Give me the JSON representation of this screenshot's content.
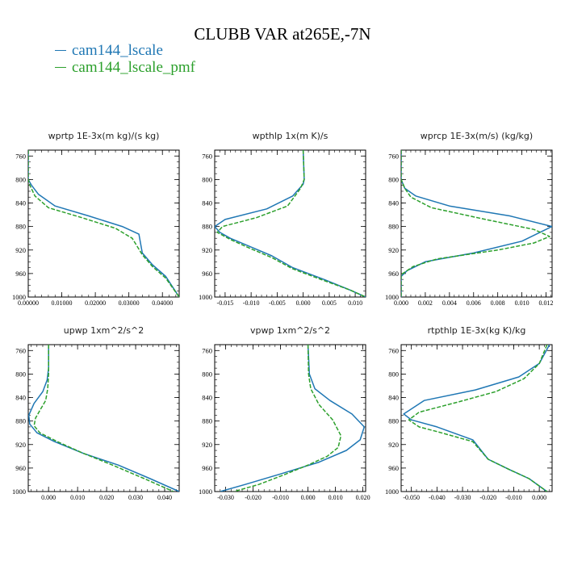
{
  "figure": {
    "title": "CLUBB VAR at265E,-7N"
  },
  "legend": [
    {
      "name": "cam144_lscale",
      "color": "#1f77b4",
      "style": "solid"
    },
    {
      "name": "cam144_lscale_pmf",
      "color": "#2ca02c",
      "style": "dashed"
    }
  ],
  "chart_data": [
    {
      "type": "line",
      "title": "wprtp  1E-3x(m kg)/(s kg)",
      "xlim": [
        0,
        0.045
      ],
      "xticks": [
        0,
        0.01,
        0.02,
        0.03,
        0.04
      ],
      "xtick_labels": [
        "0.00000",
        "0.01000",
        "0.02000",
        "0.03000",
        "0.04000"
      ],
      "ylim": [
        1000,
        750
      ],
      "yticks": [
        760,
        800,
        840,
        880,
        920,
        960,
        1000
      ],
      "series": [
        {
          "name": "cam144_lscale",
          "x": [
            0,
            0,
            0,
            0.001,
            0.003,
            0.008,
            0.018,
            0.028,
            0.033,
            0.034,
            0.037,
            0.041,
            0.045
          ],
          "y": [
            750,
            780,
            800,
            810,
            825,
            845,
            862,
            880,
            893,
            925,
            945,
            965,
            1000
          ]
        },
        {
          "name": "cam144_lscale_pmf",
          "x": [
            0,
            0,
            0,
            0.0005,
            0.002,
            0.006,
            0.016,
            0.026,
            0.031,
            0.034,
            0.037,
            0.041,
            0.045
          ],
          "y": [
            750,
            780,
            800,
            810,
            828,
            848,
            865,
            883,
            900,
            928,
            948,
            968,
            1000
          ]
        }
      ]
    },
    {
      "type": "line",
      "title": "wpthlp  1x(m K)/s",
      "xlim": [
        -0.017,
        0.012
      ],
      "xticks": [
        -0.015,
        -0.01,
        -0.005,
        0,
        0.005,
        0.01
      ],
      "xtick_labels": [
        "-0.015",
        "-0.010",
        "-0.005",
        "0.000",
        "0.005",
        "0.010"
      ],
      "ylim": [
        1000,
        750
      ],
      "yticks": [
        760,
        800,
        840,
        880,
        920,
        960,
        1000
      ],
      "series": [
        {
          "name": "cam144_lscale",
          "x": [
            0,
            0.0002,
            0,
            -0.002,
            -0.007,
            -0.015,
            -0.017,
            -0.016,
            -0.014,
            -0.01,
            -0.006,
            -0.002,
            0.004,
            0.009,
            0.012
          ],
          "y": [
            750,
            800,
            808,
            828,
            850,
            868,
            880,
            890,
            900,
            915,
            930,
            950,
            970,
            988,
            1000
          ]
        },
        {
          "name": "cam144_lscale_pmf",
          "x": [
            0,
            0.0002,
            -0.0005,
            -0.003,
            -0.009,
            -0.0155,
            -0.0165,
            -0.014,
            -0.01,
            -0.006,
            -0.002,
            0.004,
            0.009,
            0.012
          ],
          "y": [
            750,
            800,
            815,
            845,
            865,
            880,
            890,
            902,
            918,
            933,
            952,
            972,
            988,
            1000
          ]
        }
      ]
    },
    {
      "type": "line",
      "title": "wprcp  1E-3x(m/s) (kg/kg)",
      "xlim": [
        0,
        0.0125
      ],
      "xticks": [
        0,
        0.002,
        0.004,
        0.006,
        0.008,
        0.01,
        0.012
      ],
      "xtick_labels": [
        "0.000",
        "0.002",
        "0.004",
        "0.006",
        "0.008",
        "0.010",
        "0.012"
      ],
      "ylim": [
        1000,
        750
      ],
      "yticks": [
        760,
        800,
        840,
        880,
        920,
        960,
        1000
      ],
      "series": [
        {
          "name": "cam144_lscale",
          "x": [
            0,
            0,
            0.0003,
            0.0012,
            0.004,
            0.009,
            0.0125,
            0.01,
            0.006,
            0.002,
            0.0005,
            0,
            0
          ],
          "y": [
            750,
            800,
            815,
            828,
            845,
            862,
            880,
            905,
            925,
            940,
            955,
            965,
            1000
          ]
        },
        {
          "name": "cam144_lscale_pmf",
          "x": [
            0,
            0,
            0.0003,
            0.0008,
            0.0025,
            0.007,
            0.011,
            0.0123,
            0.011,
            0.008,
            0.003,
            0.001,
            0,
            0
          ],
          "y": [
            750,
            800,
            815,
            830,
            848,
            868,
            885,
            897,
            908,
            920,
            935,
            948,
            962,
            1000
          ]
        }
      ]
    },
    {
      "type": "line",
      "title": "upwp  1xm^2/s^2",
      "xlim": [
        -0.007,
        0.045
      ],
      "xticks": [
        0,
        0.01,
        0.02,
        0.03,
        0.04
      ],
      "xtick_labels": [
        "0.000",
        "0.010",
        "0.020",
        "0.030",
        "0.040"
      ],
      "ylim": [
        1000,
        750
      ],
      "yticks": [
        760,
        800,
        840,
        880,
        920,
        960,
        1000
      ],
      "series": [
        {
          "name": "cam144_lscale",
          "x": [
            0,
            0,
            -0.0005,
            -0.002,
            -0.005,
            -0.0068,
            -0.0065,
            -0.004,
            0.002,
            0.012,
            0.024,
            0.035,
            0.045
          ],
          "y": [
            750,
            790,
            810,
            830,
            850,
            870,
            885,
            900,
            915,
            935,
            955,
            978,
            1000
          ]
        },
        {
          "name": "cam144_lscale_pmf",
          "x": [
            0,
            0,
            -0.0003,
            -0.001,
            -0.003,
            -0.0045,
            -0.005,
            -0.003,
            0.003,
            0.012,
            0.022,
            0.033,
            0.043
          ],
          "y": [
            750,
            800,
            825,
            845,
            862,
            875,
            888,
            900,
            915,
            935,
            955,
            978,
            1000
          ]
        }
      ]
    },
    {
      "type": "line",
      "title": "vpwp  1xm^2/s^2",
      "xlim": [
        -0.034,
        0.021
      ],
      "xticks": [
        -0.03,
        -0.02,
        -0.01,
        0,
        0.01,
        0.02
      ],
      "xtick_labels": [
        "-0.030",
        "-0.020",
        "-0.010",
        "0.000",
        "0.010",
        "0.020"
      ],
      "ylim": [
        1000,
        750
      ],
      "yticks": [
        760,
        800,
        840,
        880,
        920,
        960,
        1000
      ],
      "series": [
        {
          "name": "cam144_lscale",
          "x": [
            0,
            0.0005,
            0.0025,
            0.008,
            0.016,
            0.0205,
            0.019,
            0.014,
            0.004,
            -0.01,
            -0.023,
            -0.032
          ],
          "y": [
            750,
            800,
            825,
            845,
            868,
            890,
            912,
            930,
            950,
            970,
            988,
            1000
          ]
        },
        {
          "name": "cam144_lscale_pmf",
          "x": [
            0,
            0.0002,
            0.001,
            0.004,
            0.009,
            0.012,
            0.011,
            0.007,
            0,
            -0.009,
            -0.018,
            -0.027
          ],
          "y": [
            750,
            800,
            825,
            852,
            878,
            905,
            925,
            940,
            955,
            972,
            988,
            1000
          ]
        }
      ]
    },
    {
      "type": "line",
      "title": "rtpthlp  1E-3x(kg K)/kg",
      "xlim": [
        -0.054,
        0.005
      ],
      "xticks": [
        -0.05,
        -0.04,
        -0.03,
        -0.02,
        -0.01,
        0
      ],
      "xtick_labels": [
        "-0.050",
        "-0.040",
        "-0.030",
        "-0.020",
        "-0.010",
        "0.000"
      ],
      "ylim": [
        1000,
        750
      ],
      "yticks": [
        760,
        800,
        840,
        880,
        920,
        960,
        1000
      ],
      "series": [
        {
          "name": "cam144_lscale",
          "x": [
            0.004,
            0,
            -0.008,
            -0.025,
            -0.045,
            -0.053,
            -0.05,
            -0.04,
            -0.026,
            -0.02,
            -0.012,
            -0.004,
            0.003
          ],
          "y": [
            750,
            782,
            805,
            827,
            845,
            868,
            878,
            890,
            912,
            945,
            962,
            978,
            1000
          ]
        },
        {
          "name": "cam144_lscale_pmf",
          "x": [
            0.003,
            0,
            -0.006,
            -0.017,
            -0.032,
            -0.047,
            -0.051,
            -0.047,
            -0.04,
            -0.026,
            -0.02,
            -0.012,
            -0.004,
            0.003
          ],
          "y": [
            750,
            782,
            808,
            830,
            848,
            865,
            878,
            890,
            898,
            915,
            945,
            962,
            978,
            1000
          ]
        }
      ]
    }
  ]
}
